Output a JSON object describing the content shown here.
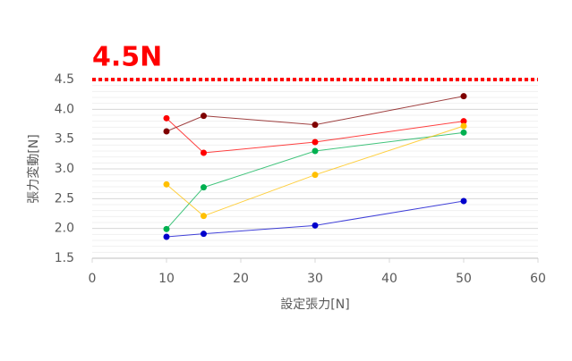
{
  "chart_data": {
    "type": "line",
    "x_label": "設定張力[N]",
    "y_label": "張力変動[N]",
    "x": [
      10,
      15,
      30,
      50
    ],
    "series": [
      {
        "color": "#7f0000",
        "values": [
          3.63,
          3.89,
          3.74,
          4.22
        ]
      },
      {
        "color": "#ff0000",
        "values": [
          3.85,
          3.27,
          3.45,
          3.8
        ]
      },
      {
        "color": "#00b050",
        "values": [
          1.99,
          2.69,
          3.3,
          3.61
        ]
      },
      {
        "color": "#ffc000",
        "values": [
          2.74,
          2.21,
          2.9,
          3.72
        ]
      },
      {
        "color": "#0000cc",
        "values": [
          1.86,
          1.91,
          2.05,
          2.46
        ]
      }
    ],
    "xlim": [
      0,
      60
    ],
    "xticks": [
      0,
      10,
      20,
      30,
      40,
      50,
      60
    ],
    "ylim": [
      1.5,
      4.5
    ],
    "yticks": [
      1.5,
      {
        "value": 2,
        "label": "2.0"
      },
      2.5,
      {
        "value": 3,
        "label": "3.0"
      },
      3.5,
      {
        "value": 4,
        "label": "4.0"
      },
      4.5
    ],
    "grid": true,
    "y_minor_step": 0.1,
    "reference_line": {
      "value": 4.5,
      "label": "4.5N",
      "color": "#ff0000"
    }
  }
}
